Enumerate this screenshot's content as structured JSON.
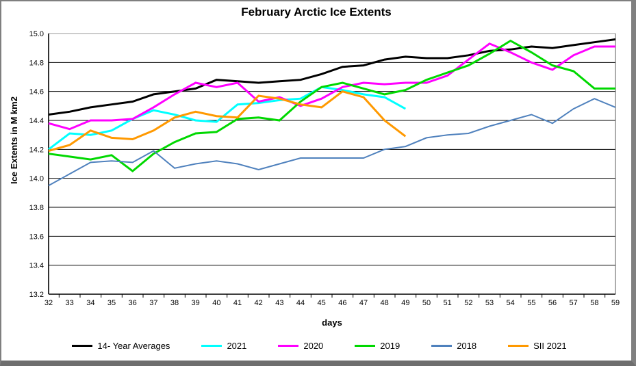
{
  "chart": {
    "title": "February Arctic Ice Extents",
    "x_axis_label": "days",
    "y_axis_label": "Ice Extents in M km2"
  },
  "chart_data": {
    "type": "line",
    "title": "February Arctic Ice Extents",
    "xlabel": "days",
    "ylabel": "Ice Extents in M km2",
    "x": [
      32,
      33,
      34,
      35,
      36,
      37,
      38,
      39,
      40,
      41,
      42,
      43,
      44,
      45,
      46,
      47,
      48,
      49,
      50,
      51,
      52,
      53,
      54,
      55,
      56,
      57,
      58,
      59
    ],
    "ylim": [
      13.2,
      15.0
    ],
    "ytick_step": 0.2,
    "grid": "horizontal",
    "legend_position": "bottom",
    "series": [
      {
        "name": "14- Year Averages",
        "color": "#000000",
        "values": [
          14.44,
          14.46,
          14.49,
          14.51,
          14.53,
          14.58,
          14.6,
          14.62,
          14.68,
          14.67,
          14.66,
          14.67,
          14.68,
          14.72,
          14.77,
          14.78,
          14.82,
          14.84,
          14.83,
          14.83,
          14.85,
          14.88,
          14.89,
          14.91,
          14.9,
          14.92,
          14.94,
          14.96
        ]
      },
      {
        "name": "2021",
        "color": "#00FFFF",
        "values": [
          14.2,
          14.31,
          14.3,
          14.33,
          14.41,
          14.47,
          14.44,
          14.4,
          14.39,
          14.51,
          14.52,
          14.54,
          14.55,
          14.63,
          14.61,
          14.58,
          14.56,
          14.48,
          null,
          null,
          null,
          null,
          null,
          null,
          null,
          null,
          null,
          null
        ]
      },
      {
        "name": "2020",
        "color": "#FF00FF",
        "values": [
          14.38,
          14.34,
          14.4,
          14.4,
          14.41,
          14.49,
          14.58,
          14.66,
          14.63,
          14.66,
          14.53,
          14.56,
          14.5,
          14.55,
          14.63,
          14.66,
          14.65,
          14.66,
          14.66,
          14.71,
          14.82,
          14.93,
          14.87,
          14.8,
          14.75,
          14.85,
          14.91,
          14.91
        ]
      },
      {
        "name": "2019",
        "color": "#00D800",
        "values": [
          14.17,
          14.15,
          14.13,
          14.16,
          14.05,
          14.17,
          14.25,
          14.31,
          14.32,
          14.41,
          14.42,
          14.4,
          14.53,
          14.63,
          14.66,
          14.62,
          14.58,
          14.61,
          14.68,
          14.73,
          14.78,
          14.86,
          14.95,
          14.87,
          14.78,
          14.74,
          14.62,
          14.62
        ]
      },
      {
        "name": "2018",
        "color": "#4F81BD",
        "values": [
          13.95,
          14.03,
          14.11,
          14.12,
          14.11,
          14.19,
          14.07,
          14.1,
          14.12,
          14.1,
          14.06,
          14.1,
          14.14,
          14.14,
          14.14,
          14.14,
          14.2,
          14.22,
          14.28,
          14.3,
          14.31,
          14.36,
          14.4,
          14.44,
          14.38,
          14.48,
          14.55,
          14.49
        ]
      },
      {
        "name": "SII 2021",
        "color": "#FF9900",
        "values": [
          14.19,
          14.23,
          14.33,
          14.28,
          14.27,
          14.33,
          14.42,
          14.46,
          14.43,
          14.42,
          14.57,
          14.55,
          14.51,
          14.49,
          14.6,
          14.56,
          14.4,
          14.29,
          null,
          null,
          null,
          null,
          null,
          null,
          null,
          null,
          null,
          null
        ]
      }
    ]
  }
}
